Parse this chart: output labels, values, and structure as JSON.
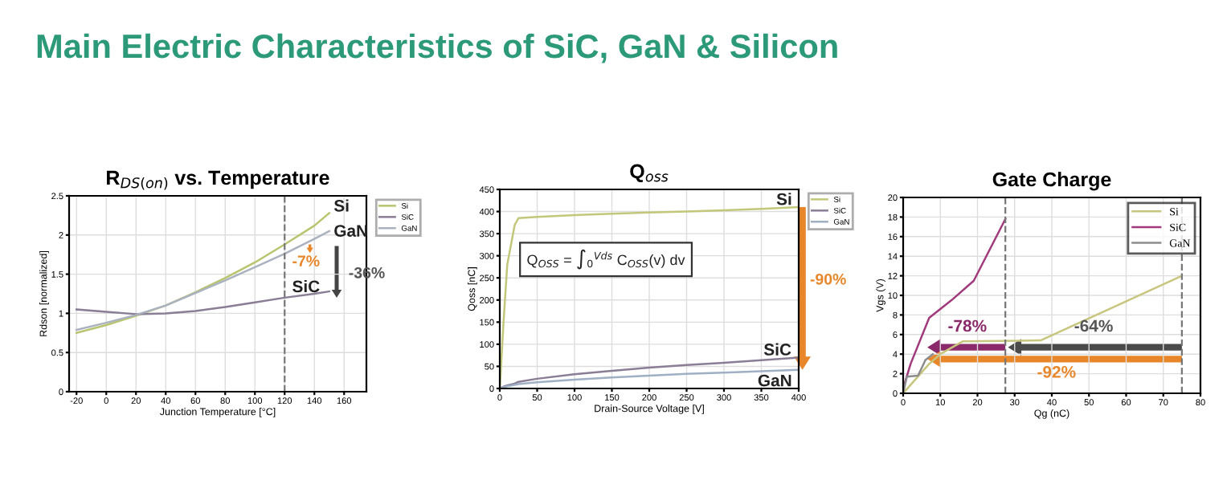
{
  "chart_data": [
    {
      "type": "other",
      "title": "Main Electric Characteristics of SiC, GaN & Silicon"
    },
    {
      "type": "line",
      "title": "R$_{DS(on)}$ vs. Temperature",
      "xlabel": "Junction Temperature [°C]",
      "ylabel": "Rdson [normalized]",
      "x": [
        -20,
        0,
        20,
        40,
        60,
        80,
        100,
        120,
        140,
        150
      ],
      "series": [
        {
          "name": "Si",
          "color": "#b9c46e",
          "values": [
            0.75,
            0.85,
            0.97,
            1.1,
            1.27,
            1.45,
            1.65,
            1.88,
            2.12,
            2.28
          ]
        },
        {
          "name": "SiC",
          "color": "#8a7d96",
          "values": [
            1.05,
            1.02,
            0.99,
            1.0,
            1.03,
            1.08,
            1.14,
            1.2,
            1.25,
            1.28
          ]
        },
        {
          "name": "GaN",
          "color": "#aab2c0",
          "values": [
            0.79,
            0.88,
            0.98,
            1.1,
            1.26,
            1.42,
            1.59,
            1.76,
            1.95,
            2.05
          ]
        }
      ],
      "xlim": [
        -25,
        175
      ],
      "xticks": [
        -20,
        0,
        20,
        40,
        60,
        80,
        100,
        120,
        140,
        160
      ],
      "ylim": [
        0,
        2.5
      ],
      "yticks": [
        0,
        0.5,
        1,
        1.5,
        2,
        2.5
      ],
      "ref_lines": [
        {
          "axis": "x",
          "value": 120,
          "color": "#777777",
          "line_style": "dashed"
        }
      ],
      "annotations": [
        "Si",
        "GaN",
        "SiC",
        "-7%",
        "-36%"
      ],
      "grid": true,
      "legend": "top right"
    },
    {
      "type": "line",
      "title": "Q$_{oss}$",
      "xlabel": "Drain-Source Voltage [V]",
      "ylabel": "Qoss [nC]",
      "x": [
        0,
        5,
        10,
        20,
        25,
        50,
        100,
        150,
        200,
        250,
        300,
        350,
        400
      ],
      "series": [
        {
          "name": "Si",
          "color": "#c2c77a",
          "values": [
            0,
            150,
            280,
            370,
            385,
            388,
            392,
            395,
            398,
            400,
            403,
            406,
            410
          ]
        },
        {
          "name": "SiC",
          "color": "#8a7d96",
          "values": [
            0,
            4,
            7,
            11,
            15,
            22,
            32,
            40,
            47,
            53,
            58,
            64,
            70
          ]
        },
        {
          "name": "GaN",
          "color": "#9fb0c4",
          "values": [
            0,
            3,
            5,
            8,
            10,
            14,
            20,
            25,
            29,
            33,
            36,
            39,
            42
          ]
        }
      ],
      "xlim": [
        0,
        400
      ],
      "xticks": [
        0,
        50,
        100,
        150,
        200,
        250,
        300,
        350,
        400
      ],
      "ylim": [
        0,
        450
      ],
      "yticks": [
        0,
        50,
        100,
        150,
        200,
        250,
        300,
        350,
        400,
        450
      ],
      "annotations": [
        "Si",
        "SiC",
        "GaN",
        "-90%",
        "Q$_{OSS}$ = ∫$_{0}$$^{Vds}$ C$_{OSS}$(v) dv"
      ],
      "grid": true,
      "legend": "top right"
    },
    {
      "type": "line",
      "title": "Gate Charge",
      "xlabel": "Qg (nC)",
      "ylabel": "Vgs (V)",
      "series": [
        {
          "name": "Si",
          "color": "#c8c67e",
          "x": [
            0,
            7,
            10,
            16,
            37,
            75
          ],
          "values": [
            0,
            3,
            4,
            5.3,
            5.4,
            12
          ]
        },
        {
          "name": "SiC",
          "color": "#a03a7c",
          "x": [
            0,
            2,
            7,
            13,
            19,
            27.5
          ],
          "values": [
            0.5,
            3,
            7.7,
            9.5,
            11.5,
            17.8
          ]
        },
        {
          "name": "GaN",
          "color": "#8c8c8c",
          "x": [
            0,
            1,
            4,
            6,
            8
          ],
          "values": [
            0,
            1.7,
            1.8,
            3.4,
            4
          ]
        }
      ],
      "xlim": [
        0,
        80
      ],
      "xticks": [
        0,
        10,
        20,
        30,
        40,
        50,
        60,
        70,
        80
      ],
      "ylim": [
        0,
        20
      ],
      "yticks": [
        0,
        2,
        4,
        6,
        8,
        10,
        12,
        14,
        16,
        18,
        20
      ],
      "ref_lines": [
        {
          "axis": "x",
          "value": 27.5,
          "color": "#777777",
          "line_style": "dashed"
        },
        {
          "axis": "x",
          "value": 75,
          "color": "#777777",
          "line_style": "dashed"
        }
      ],
      "annotations": [
        "-78%",
        "-64%",
        "-92%"
      ],
      "grid": true,
      "legend": "top right"
    }
  ]
}
